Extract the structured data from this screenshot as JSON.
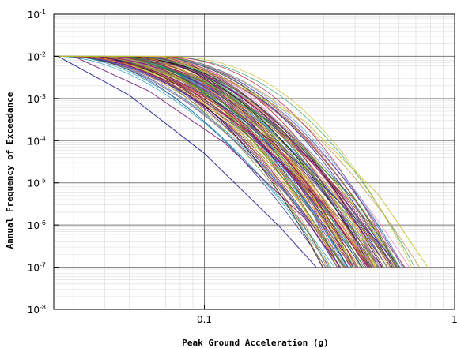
{
  "chart_data": {
    "type": "line",
    "title": "",
    "xlabel": "Peak Ground Acceleration (g)",
    "ylabel": "Annual Frequency of Exceedance",
    "x_scale": "log",
    "y_scale": "log",
    "xlim": [
      0.025,
      1
    ],
    "ylim": [
      1e-08,
      0.1
    ],
    "x_ticks": [
      {
        "value": 0.1,
        "label": "0.1"
      },
      {
        "value": 1,
        "label": "1"
      }
    ],
    "y_ticks": [
      {
        "value": 0.1,
        "base": "10",
        "exp": "-1"
      },
      {
        "value": 0.01,
        "base": "10",
        "exp": "-2"
      },
      {
        "value": 0.001,
        "base": "10",
        "exp": "-3"
      },
      {
        "value": 0.0001,
        "base": "10",
        "exp": "-4"
      },
      {
        "value": 1e-05,
        "base": "10",
        "exp": "-5"
      },
      {
        "value": 1e-06,
        "base": "10",
        "exp": "-6"
      },
      {
        "value": 1e-07,
        "base": "10",
        "exp": "-7"
      },
      {
        "value": 1e-08,
        "base": "10",
        "exp": "-8"
      }
    ],
    "grid": true,
    "curve_family": {
      "count": 120,
      "y_start": 0.01,
      "y_end": 1e-07,
      "x_start_range": [
        0.026,
        0.068
      ],
      "x_end_range": [
        0.28,
        0.78
      ]
    },
    "series": [
      {
        "x": [
          0.026,
          0.05,
          0.1,
          0.2,
          0.28
        ],
        "y": [
          0.01,
          0.0012,
          5e-05,
          9e-07,
          1e-07
        ]
      },
      {
        "x": [
          0.03,
          0.06,
          0.12,
          0.25,
          0.35
        ],
        "y": [
          0.01,
          0.0015,
          9e-05,
          1.5e-06,
          1e-07
        ]
      },
      {
        "x": [
          0.04,
          0.08,
          0.15,
          0.3,
          0.45
        ],
        "y": [
          0.01,
          0.002,
          0.00017,
          3e-06,
          1e-07
        ]
      },
      {
        "x": [
          0.05,
          0.1,
          0.2,
          0.4,
          0.6
        ],
        "y": [
          0.01,
          0.0025,
          0.0002,
          4e-06,
          1e-07
        ]
      },
      {
        "x": [
          0.068,
          0.12,
          0.25,
          0.5,
          0.78
        ],
        "y": [
          0.01,
          0.003,
          0.0003,
          5e-06,
          1e-07
        ]
      }
    ],
    "colors": [
      "#1f1f8f",
      "#7a1e7a",
      "#a0146e",
      "#2a8a2a",
      "#c9c22a",
      "#1e9bb5",
      "#d13f3f",
      "#5a5a5a",
      "#e0a51e",
      "#3c3cc8",
      "#8f5fd0",
      "#2fa36b",
      "#b31d4a",
      "#6b8e23",
      "#e87ab5",
      "#111111",
      "#4a9ad9",
      "#c08a2a"
    ]
  }
}
